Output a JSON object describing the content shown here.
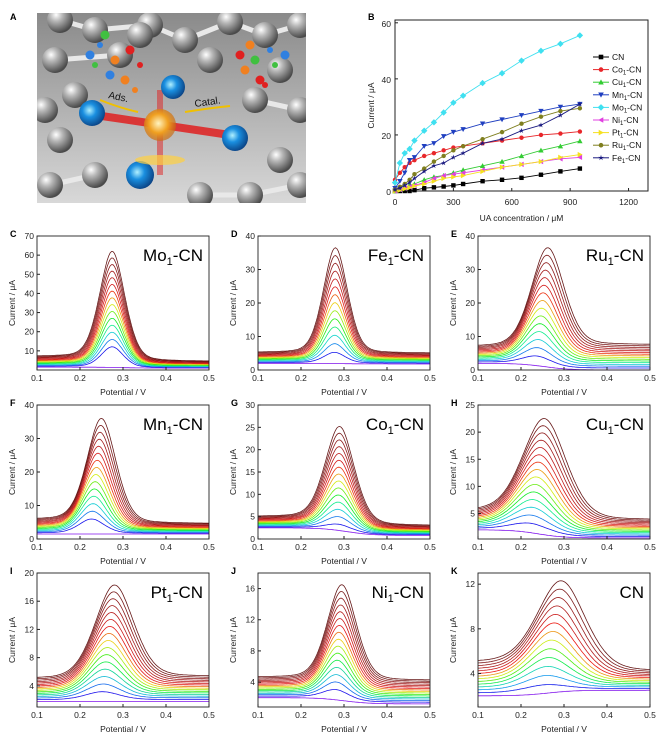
{
  "panel_a": {
    "letter": "A",
    "label_ads": "Ads.",
    "label_catal": "Catal."
  },
  "chart_data": [
    {
      "panel": "B",
      "type": "line",
      "title": "",
      "xlabel": "UA concentration / μM",
      "ylabel": "Current / μA",
      "xlim": [
        0,
        1300
      ],
      "ylim": [
        0,
        61
      ],
      "xticks": [
        "0",
        "300",
        "600",
        "900",
        "1200"
      ],
      "xtick_values": [
        0,
        300,
        600,
        900,
        1200
      ],
      "yticks": [
        "0",
        "20",
        "40",
        "60"
      ],
      "ytick_values": [
        0,
        20,
        40,
        60
      ],
      "legend_position": "right",
      "x": [
        0,
        25,
        50,
        75,
        100,
        150,
        200,
        250,
        300,
        350,
        450,
        550,
        650,
        750,
        850,
        950
      ],
      "series": [
        {
          "name": "CN",
          "parts": [
            "CN",
            "",
            ""
          ],
          "color": "#000000",
          "marker": "square",
          "values": [
            0,
            0,
            0,
            0,
            0.3,
            1,
            1.3,
            1.6,
            2,
            2.5,
            3.5,
            4,
            4.7,
            5.8,
            7,
            8
          ]
        },
        {
          "name": "Co1-CN",
          "parts": [
            "Co",
            "1",
            "-CN"
          ],
          "color": "#e8262a",
          "marker": "circle",
          "values": [
            4,
            6.5,
            8.5,
            10,
            11,
            12.5,
            13.5,
            14.5,
            15.5,
            16,
            17,
            18,
            19,
            20,
            20.5,
            21.2
          ]
        },
        {
          "name": "Cu1-CN",
          "parts": [
            "Cu",
            "1",
            "-CN"
          ],
          "color": "#33cc33",
          "marker": "triangle-up",
          "values": [
            0,
            0.5,
            1,
            2,
            2.5,
            4,
            5,
            5.5,
            6.5,
            7.5,
            9,
            10.5,
            12.5,
            14.5,
            16,
            17.8
          ]
        },
        {
          "name": "Mn1-CN",
          "parts": [
            "Mn",
            "1",
            "-CN"
          ],
          "color": "#1f3fc0",
          "marker": "triangle-down",
          "values": [
            1,
            3.5,
            6.5,
            11,
            12,
            16,
            17,
            19.5,
            21,
            22,
            24,
            25.5,
            27,
            28.5,
            30,
            31
          ]
        },
        {
          "name": "Mo1-CN",
          "parts": [
            "Mo",
            "1",
            "-CN"
          ],
          "color": "#3fe0f0",
          "marker": "diamond",
          "values": [
            3,
            10,
            13.5,
            15,
            18,
            21.5,
            24.5,
            28,
            31.5,
            34,
            38.5,
            42,
            46.5,
            50,
            52.5,
            55.5
          ]
        },
        {
          "name": "Ni1-CN",
          "parts": [
            "Ni",
            "1",
            "-CN"
          ],
          "color": "#e040e0",
          "marker": "triangle-left",
          "values": [
            0,
            0.5,
            1,
            1.5,
            2,
            3,
            4.5,
            5.5,
            6,
            6.5,
            7.5,
            8.5,
            9.5,
            10.5,
            11.5,
            12
          ]
        },
        {
          "name": "Pt1-CN",
          "parts": [
            "Pt",
            "1",
            "-CN"
          ],
          "color": "#f5e020",
          "marker": "triangle-right",
          "values": [
            0,
            0.3,
            0.8,
            1.2,
            1.8,
            2.5,
            3.5,
            4.5,
            5,
            5.5,
            7,
            8.5,
            9.5,
            10.5,
            12,
            13
          ]
        },
        {
          "name": "Ru1-CN",
          "parts": [
            "Ru",
            "1",
            "-CN"
          ],
          "color": "#7f7f1f",
          "marker": "circle",
          "values": [
            0.5,
            1.5,
            2.5,
            4,
            6,
            8,
            10.5,
            12.5,
            14.5,
            16,
            18.5,
            21,
            24,
            26.5,
            28.5,
            29.5
          ]
        },
        {
          "name": "Fe1-CN",
          "parts": [
            "Fe",
            "1",
            "-CN"
          ],
          "color": "#1a1a80",
          "marker": "star",
          "values": [
            0.5,
            1,
            2,
            3,
            4.5,
            7,
            9,
            10,
            12,
            13.5,
            17,
            18.5,
            21.5,
            23.5,
            27,
            31
          ]
        }
      ]
    },
    {
      "panel": "C",
      "type": "line",
      "title_parts": [
        "Mo",
        "1",
        "-CN"
      ],
      "xlabel": "Potential / V",
      "ylabel": "Current / μA",
      "xlim": [
        0.1,
        0.5
      ],
      "ylim": [
        0,
        70
      ],
      "yticks": [
        "10",
        "20",
        "30",
        "40",
        "50",
        "60",
        "70"
      ],
      "ytick_values": [
        10,
        20,
        30,
        40,
        50,
        60,
        70
      ],
      "xticks": [
        "0.1",
        "0.2",
        "0.3",
        "0.4",
        "0.5"
      ],
      "n_curves": 16,
      "peak_potential_V": [
        0.275,
        0.275
      ],
      "peak_current_uA": [
        8,
        62
      ],
      "baseline_left_uA": [
        1.5,
        7
      ],
      "baseline_right_uA": [
        1,
        4.5
      ],
      "width_V": 0.026
    },
    {
      "panel": "D",
      "type": "line",
      "title_parts": [
        "Fe",
        "1",
        "-CN"
      ],
      "xlabel": "Potential / V",
      "ylabel": "Current / μA",
      "xlim": [
        0.1,
        0.5
      ],
      "ylim": [
        0,
        40
      ],
      "yticks": [
        "0",
        "10",
        "20",
        "30",
        "40"
      ],
      "ytick_values": [
        0,
        10,
        20,
        30,
        40
      ],
      "xticks": [
        "0.1",
        "0.2",
        "0.3",
        "0.4",
        "0.5"
      ],
      "n_curves": 15,
      "peak_potential_V": [
        0.278,
        0.28
      ],
      "peak_current_uA": [
        2.5,
        36.5
      ],
      "baseline_left_uA": [
        2,
        5.2
      ],
      "baseline_right_uA": [
        1.8,
        5
      ],
      "width_V": 0.025
    },
    {
      "panel": "E",
      "type": "line",
      "title_parts": [
        "Ru",
        "1",
        "-CN"
      ],
      "xlabel": "Potential / V",
      "ylabel": "Current / μA",
      "xlim": [
        0.1,
        0.5
      ],
      "ylim": [
        0,
        40
      ],
      "yticks": [
        "0",
        "10",
        "20",
        "30",
        "40"
      ],
      "ytick_values": [
        0,
        10,
        20,
        30,
        40
      ],
      "xticks": [
        "0.1",
        "0.2",
        "0.3",
        "0.4",
        "0.5"
      ],
      "n_curves": 16,
      "peak_potential_V": [
        0.235,
        0.262
      ],
      "peak_current_uA": [
        1.5,
        36.5
      ],
      "baseline_left_uA": [
        2,
        7
      ],
      "baseline_right_uA": [
        0,
        7.5
      ],
      "width_V": 0.034
    },
    {
      "panel": "F",
      "type": "line",
      "title_parts": [
        "Mn",
        "1",
        "-CN"
      ],
      "xlabel": "Potential / V",
      "ylabel": "Current / μA",
      "xlim": [
        0.1,
        0.5
      ],
      "ylim": [
        0,
        40
      ],
      "yticks": [
        "0",
        "10",
        "20",
        "30",
        "40"
      ],
      "ytick_values": [
        0,
        10,
        20,
        30,
        40
      ],
      "xticks": [
        "0.1",
        "0.2",
        "0.3",
        "0.4",
        "0.5"
      ],
      "n_curves": 16,
      "peak_potential_V": [
        0.225,
        0.25
      ],
      "peak_current_uA": [
        3.5,
        36
      ],
      "baseline_left_uA": [
        1.5,
        5.8
      ],
      "baseline_right_uA": [
        1.5,
        4.6
      ],
      "width_V": 0.03
    },
    {
      "panel": "G",
      "type": "line",
      "title_parts": [
        "Co",
        "1",
        "-CN"
      ],
      "xlabel": "Potential / V",
      "ylabel": "Current / μA",
      "xlim": [
        0.1,
        0.5
      ],
      "ylim": [
        0,
        30
      ],
      "yticks": [
        "0",
        "5",
        "10",
        "15",
        "20",
        "25",
        "30"
      ],
      "ytick_values": [
        0,
        5,
        10,
        15,
        20,
        25,
        30
      ],
      "xticks": [
        "0.1",
        "0.2",
        "0.3",
        "0.4",
        "0.5"
      ],
      "n_curves": 16,
      "peak_potential_V": [
        0.287,
        0.29
      ],
      "peak_current_uA": [
        1.5,
        25.2
      ],
      "baseline_left_uA": [
        2.5,
        5
      ],
      "baseline_right_uA": [
        0.8,
        3
      ],
      "width_V": 0.03
    },
    {
      "panel": "H",
      "type": "line",
      "title_parts": [
        "Cu",
        "1",
        "-CN"
      ],
      "xlabel": "Potential / V",
      "ylabel": "Current / μA",
      "xlim": [
        0.1,
        0.5
      ],
      "ylim": [
        0.3,
        25
      ],
      "yticks": [
        "5",
        "10",
        "15",
        "20",
        "25"
      ],
      "ytick_values": [
        5,
        10,
        15,
        20,
        25
      ],
      "xticks": [
        "0.1",
        "0.2",
        "0.3",
        "0.4",
        "0.5"
      ],
      "n_curves": 16,
      "peak_potential_V": [
        0.22,
        0.255
      ],
      "peak_current_uA": [
        1.6,
        22.5
      ],
      "baseline_left_uA": [
        2,
        5.5
      ],
      "baseline_right_uA": [
        0.5,
        3.8
      ],
      "width_V": 0.045
    },
    {
      "panel": "I",
      "type": "line",
      "title_parts": [
        "Pt",
        "1",
        "-CN"
      ],
      "xlabel": "Potential / V",
      "ylabel": "Current / μA",
      "xlim": [
        0.1,
        0.5
      ],
      "ylim": [
        1,
        20
      ],
      "yticks": [
        "4",
        "8",
        "12",
        "16",
        "20"
      ],
      "ytick_values": [
        4,
        8,
        12,
        16,
        20
      ],
      "xticks": [
        "0.1",
        "0.2",
        "0.3",
        "0.4",
        "0.5"
      ],
      "n_curves": 17,
      "peak_potential_V": [
        0.25,
        0.28
      ],
      "peak_current_uA": [
        2,
        18.3
      ],
      "baseline_left_uA": [
        1.8,
        5
      ],
      "baseline_right_uA": [
        1.8,
        5.3
      ],
      "width_V": 0.04
    },
    {
      "panel": "J",
      "type": "line",
      "title_parts": [
        "Ni",
        "1",
        "-CN"
      ],
      "xlabel": "Potential / V",
      "ylabel": "Current / μA",
      "xlim": [
        0.1,
        0.5
      ],
      "ylim": [
        0.8,
        18
      ],
      "yticks": [
        "4",
        "8",
        "12",
        "16"
      ],
      "ytick_values": [
        4,
        8,
        12,
        16
      ],
      "xticks": [
        "0.1",
        "0.2",
        "0.3",
        "0.4",
        "0.5"
      ],
      "n_curves": 17,
      "peak_potential_V": [
        0.28,
        0.295
      ],
      "peak_current_uA": [
        2,
        16.5
      ],
      "baseline_left_uA": [
        2,
        4.6
      ],
      "baseline_right_uA": [
        1.2,
        4.2
      ],
      "width_V": 0.03
    },
    {
      "panel": "K",
      "type": "line",
      "title_parts": [
        "CN",
        "",
        ""
      ],
      "xlabel": "Potential / V",
      "ylabel": "Current / μA",
      "xlim": [
        0.1,
        0.5
      ],
      "ylim": [
        1,
        13
      ],
      "yticks": [
        "4",
        "8",
        "12"
      ],
      "ytick_values": [
        4,
        8,
        12
      ],
      "xticks": [
        "0.1",
        "0.2",
        "0.3",
        "0.4",
        "0.5"
      ],
      "n_curves": 14,
      "peak_potential_V": [
        0.25,
        0.295
      ],
      "peak_current_uA": [
        2.1,
        12.3
      ],
      "baseline_left_uA": [
        2,
        5
      ],
      "baseline_right_uA": [
        2.5,
        4.2
      ],
      "width_V": 0.05
    }
  ]
}
